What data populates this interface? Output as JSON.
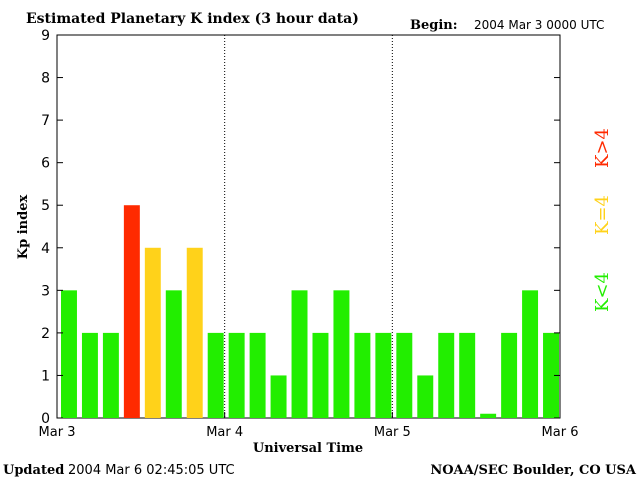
{
  "header": {
    "title": "Estimated Planetary K index (3 hour data)",
    "begin_label": "Begin:",
    "begin_value": "2004 Mar 3 0000 UTC"
  },
  "footer": {
    "updated_label": "Updated",
    "updated_value": "2004 Mar  6 02:45:05 UTC",
    "source": "NOAA/SEC Boulder, CO USA"
  },
  "legend": {
    "high": "K>4",
    "mid": "K=4",
    "low": "K<4"
  },
  "colors": {
    "high": "#ff2a00",
    "mid": "#ffd21a",
    "low": "#22ee00"
  },
  "chart_data": {
    "type": "bar",
    "title": "Estimated Planetary K index (3 hour data)",
    "xlabel": "Universal Time",
    "ylabel": "Kp index",
    "ylim": [
      0,
      9
    ],
    "yticks": [
      0,
      1,
      2,
      3,
      4,
      5,
      6,
      7,
      8,
      9
    ],
    "xtick_labels": [
      "Mar 3",
      "Mar 4",
      "Mar 5",
      "Mar 6"
    ],
    "interval_hours": 3,
    "day_dividers": [
      "Mar 4",
      "Mar 5"
    ],
    "values": [
      3,
      2,
      2,
      5,
      4,
      3,
      4,
      2,
      2,
      2,
      1,
      3,
      2,
      3,
      2,
      2,
      2,
      1,
      2,
      2,
      0.1,
      2,
      3,
      2
    ]
  }
}
